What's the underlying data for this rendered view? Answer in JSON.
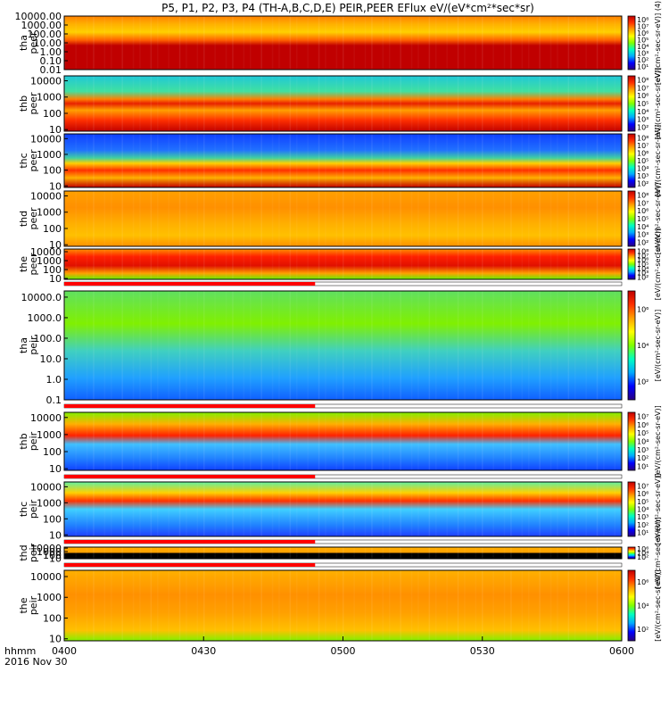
{
  "title": "P5, P1, P2, P3, P4 (TH-A,B,C,D,E) PEIR,PEER EFlux eV/(eV*cm²*sec*sr)",
  "time_axis": {
    "row_label": "hhmm",
    "date": "2016 Nov 30",
    "ticks": [
      "0400",
      "0430",
      "0500",
      "0530",
      "0600"
    ],
    "range_hhmm": [
      "0400",
      "0600"
    ]
  },
  "colormap": [
    "#2a0080",
    "#0000ff",
    "#00aaff",
    "#00ffc0",
    "#80ff00",
    "#ffff00",
    "#ffa000",
    "#ff3000",
    "#c00000"
  ],
  "chart_data": [
    {
      "type": "heatmap",
      "probe": "tha",
      "species": "peer",
      "ylabel_lines": [
        "tha",
        "peer"
      ],
      "yticks": [
        "10000.00",
        "1000.00",
        "100.00",
        "10.00",
        "1.00",
        "0.10",
        "0.01"
      ],
      "scale": "log",
      "ylim": [
        0.01,
        10000
      ],
      "colorbar_ticks": [
        "10⁸",
        "10⁷",
        "10⁶",
        "10⁵",
        "10⁴",
        "10³",
        "10²",
        "10¹"
      ],
      "colorbar_label": "[eV/(cm²-sec-sr-eV)] (4)"
    },
    {
      "type": "heatmap",
      "probe": "thb",
      "species": "peer",
      "ylabel_lines": [
        "thb",
        "peer"
      ],
      "yticks": [
        "10000",
        "1000",
        "100",
        "10"
      ],
      "scale": "log",
      "ylim": [
        8,
        20000
      ],
      "colorbar_ticks": [
        "10⁸",
        "10⁷",
        "10⁶",
        "10⁵",
        "10⁴",
        "10³",
        "10²"
      ],
      "colorbar_label": "[eV/(cm²-sec-sr-eV)]"
    },
    {
      "type": "heatmap",
      "probe": "thc",
      "species": "peer",
      "ylabel_lines": [
        "thc",
        "peer"
      ],
      "yticks": [
        "10000",
        "1000",
        "100",
        "10"
      ],
      "scale": "log",
      "ylim": [
        8,
        20000
      ],
      "colorbar_ticks": [
        "10⁸",
        "10⁷",
        "10⁶",
        "10⁵",
        "10⁴",
        "10³",
        "10²"
      ],
      "colorbar_label": "[eV/(cm²-sec-sr-eV)]"
    },
    {
      "type": "heatmap",
      "probe": "thd",
      "species": "peer",
      "ylabel_lines": [
        "thd",
        "peer"
      ],
      "yticks": [
        "10000",
        "1000",
        "100",
        "10"
      ],
      "scale": "log",
      "ylim": [
        8,
        20000
      ],
      "colorbar_ticks": [
        "10⁸",
        "10⁷",
        "10⁶",
        "10⁵",
        "10⁴",
        "10³",
        "10²"
      ],
      "colorbar_label": "[eV/(cm²-sec-sr-eV)]"
    },
    {
      "type": "heatmap",
      "probe": "the",
      "species": "peer",
      "ylabel_lines": [
        "the",
        "peer"
      ],
      "yticks": [
        "10000",
        "1000",
        "100",
        "10"
      ],
      "scale": "log",
      "ylim": [
        8,
        20000
      ],
      "colorbar_ticks": [
        "10⁸",
        "10⁷",
        "10⁶",
        "10⁵",
        "10⁴",
        "10³",
        "10²"
      ],
      "colorbar_label": "[eV/(cm²-sec-sr-eV)]"
    },
    {
      "type": "heatmap",
      "probe": "tha",
      "species": "peir",
      "ylabel_lines": [
        "tha",
        "peir"
      ],
      "yticks": [
        "10000.0",
        "1000.0",
        "100.0",
        "10.0",
        "1.0",
        "0.1"
      ],
      "scale": "log",
      "ylim": [
        0.1,
        20000
      ],
      "colorbar_ticks": [
        "10⁶",
        "10⁴",
        "10²"
      ],
      "colorbar_label": "[eV/(cm²-sec-sr-eV)]"
    },
    {
      "type": "heatmap",
      "probe": "thb",
      "species": "peir",
      "ylabel_lines": [
        "thb",
        "peir"
      ],
      "yticks": [
        "10000",
        "1000",
        "100",
        "10"
      ],
      "scale": "log",
      "ylim": [
        8,
        20000
      ],
      "colorbar_ticks": [
        "10⁷",
        "10⁶",
        "10⁵",
        "10⁴",
        "10³",
        "10²",
        "10¹"
      ],
      "colorbar_label": "[eV/(cm²-sec-sr-eV)]"
    },
    {
      "type": "heatmap",
      "probe": "thc",
      "species": "peir",
      "ylabel_lines": [
        "thc",
        "peir"
      ],
      "yticks": [
        "10000",
        "1000",
        "100",
        "10"
      ],
      "scale": "log",
      "ylim": [
        8,
        20000
      ],
      "colorbar_ticks": [
        "10⁷",
        "10⁶",
        "10⁵",
        "10⁴",
        "10³",
        "10²",
        "10¹"
      ],
      "colorbar_label": "[eV/(cm²-sec-sr-eV)]"
    },
    {
      "type": "heatmap",
      "probe": "thd",
      "species": "peir",
      "ylabel_lines": [
        "thd",
        "peir"
      ],
      "yticks": [
        "10000",
        "1000",
        "100",
        "10"
      ],
      "scale": "log",
      "ylim": [
        8,
        20000
      ],
      "colorbar_ticks": [
        "10⁶",
        "10⁴",
        "10²"
      ],
      "colorbar_label": "[eV/(cm²-sec-sr-eV)]"
    },
    {
      "type": "heatmap",
      "probe": "the",
      "species": "peir",
      "ylabel_lines": [
        "the",
        "peir"
      ],
      "yticks": [
        "10000",
        "1000",
        "100",
        "10"
      ],
      "scale": "log",
      "ylim": [
        8,
        20000
      ],
      "colorbar_ticks": [
        "10⁶",
        "10⁴",
        "10²"
      ],
      "colorbar_label": "[eV/(cm²-sec-sr-eV)]"
    }
  ]
}
